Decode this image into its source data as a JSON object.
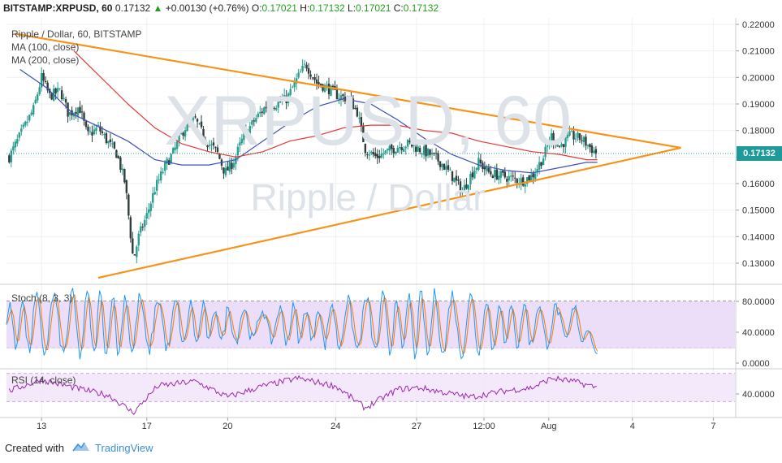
{
  "header": {
    "symbol": "BITSTAMP:XRPUSD, 60",
    "last": "0.17132",
    "change_arrow": "▲",
    "change": "+0.00130 (+0.76%)",
    "o_label": "O:",
    "o_val": "0.17021",
    "h_label": "H:",
    "h_val": "0.17132",
    "l_label": "L:",
    "l_val": "0.17021",
    "c_label": "C:",
    "c_val": "0.17132"
  },
  "legend": {
    "title": "Ripple / Dollar, 60, BITSTAMP",
    "ma100": "MA (100, close)",
    "ma200": "MA (200, close)"
  },
  "watermark": {
    "symbol": "XRPUSD, 60",
    "name": "Ripple / Dollar"
  },
  "price_tag": "0.17132",
  "stoch": {
    "label": "Stoch (8, 3, 3)"
  },
  "rsi": {
    "label": "RSI (14, close)"
  },
  "footer": {
    "created_with": "Created with",
    "brand": "TradingView"
  },
  "colors": {
    "candle_up": "#2a9d8f",
    "candle_down": "#2f3d3b",
    "ma100": "#3f51b5",
    "ma200": "#e53935",
    "trendline": "#f7931a",
    "stoch_k": "#2196f3",
    "stoch_d": "#f57c00",
    "rsi": "#9c27b0",
    "price_tag": "#1f9a9a"
  },
  "chart_data": [
    {
      "type": "candlestick",
      "title": "Ripple / Dollar, 60, BITSTAMP",
      "ylim": [
        0.12,
        0.22
      ],
      "y_ticks": [
        "0.22000",
        "0.21000",
        "0.20000",
        "0.19000",
        "0.18000",
        "0.17000",
        "0.16000",
        "0.15000",
        "0.14000",
        "0.13000"
      ],
      "x_ticks": [
        "13",
        "17",
        "20",
        "24",
        "27",
        "12:00",
        "Aug",
        "4",
        "7"
      ],
      "x_tick_pos": [
        1.3,
        5.2,
        8.2,
        12.2,
        15.2,
        17.7,
        20.1,
        23.2,
        26.2
      ],
      "xlim": [
        0,
        27
      ],
      "close_path": [
        [
          0.1,
          0.17
        ],
        [
          0.5,
          0.178
        ],
        [
          1.0,
          0.188
        ],
        [
          1.3,
          0.2
        ],
        [
          1.6,
          0.193
        ],
        [
          2.0,
          0.195
        ],
        [
          2.3,
          0.186
        ],
        [
          2.7,
          0.189
        ],
        [
          3.0,
          0.178
        ],
        [
          3.4,
          0.181
        ],
        [
          3.8,
          0.175
        ],
        [
          4.1,
          0.171
        ],
        [
          4.4,
          0.16
        ],
        [
          4.7,
          0.131
        ],
        [
          4.9,
          0.14
        ],
        [
          5.2,
          0.148
        ],
        [
          5.5,
          0.158
        ],
        [
          5.9,
          0.167
        ],
        [
          6.2,
          0.172
        ],
        [
          6.6,
          0.181
        ],
        [
          7.0,
          0.184
        ],
        [
          7.4,
          0.176
        ],
        [
          7.8,
          0.172
        ],
        [
          8.1,
          0.164
        ],
        [
          8.4,
          0.168
        ],
        [
          8.8,
          0.178
        ],
        [
          9.2,
          0.184
        ],
        [
          9.6,
          0.189
        ],
        [
          10.0,
          0.19
        ],
        [
          10.4,
          0.192
        ],
        [
          10.8,
          0.2
        ],
        [
          11.1,
          0.205
        ],
        [
          11.5,
          0.198
        ],
        [
          11.9,
          0.196
        ],
        [
          12.3,
          0.193
        ],
        [
          12.7,
          0.192
        ],
        [
          13.0,
          0.187
        ],
        [
          13.3,
          0.173
        ],
        [
          13.7,
          0.17
        ],
        [
          14.1,
          0.172
        ],
        [
          14.5,
          0.174
        ],
        [
          14.9,
          0.175
        ],
        [
          15.3,
          0.173
        ],
        [
          15.7,
          0.171
        ],
        [
          16.1,
          0.168
        ],
        [
          16.5,
          0.163
        ],
        [
          16.9,
          0.157
        ],
        [
          17.2,
          0.163
        ],
        [
          17.5,
          0.168
        ],
        [
          17.9,
          0.164
        ],
        [
          18.3,
          0.163
        ],
        [
          18.7,
          0.162
        ],
        [
          19.1,
          0.161
        ],
        [
          19.5,
          0.163
        ],
        [
          19.9,
          0.17
        ],
        [
          20.2,
          0.178
        ],
        [
          20.5,
          0.174
        ],
        [
          20.9,
          0.178
        ],
        [
          21.3,
          0.177
        ],
        [
          21.6,
          0.174
        ],
        [
          21.9,
          0.171
        ]
      ],
      "series": [
        {
          "name": "MA (100, close)",
          "points": [
            [
              0.5,
              0.203
            ],
            [
              1.5,
              0.196
            ],
            [
              2.5,
              0.186
            ],
            [
              3.5,
              0.181
            ],
            [
              4.5,
              0.176
            ],
            [
              5.5,
              0.169
            ],
            [
              6.5,
              0.167
            ],
            [
              7.5,
              0.167
            ],
            [
              8.5,
              0.169
            ],
            [
              9.5,
              0.176
            ],
            [
              10.5,
              0.183
            ],
            [
              11.5,
              0.189
            ],
            [
              12.5,
              0.192
            ],
            [
              13.5,
              0.19
            ],
            [
              14.5,
              0.184
            ],
            [
              15.5,
              0.177
            ],
            [
              16.5,
              0.171
            ],
            [
              17.5,
              0.167
            ],
            [
              18.5,
              0.165
            ],
            [
              19.5,
              0.164
            ],
            [
              20.5,
              0.166
            ],
            [
              21.5,
              0.168
            ],
            [
              21.9,
              0.168
            ]
          ]
        },
        {
          "name": "MA (200, close)",
          "points": [
            [
              2.5,
              0.21
            ],
            [
              3.5,
              0.2
            ],
            [
              4.5,
              0.19
            ],
            [
              5.5,
              0.181
            ],
            [
              6.5,
              0.175
            ],
            [
              7.5,
              0.172
            ],
            [
              8.5,
              0.17
            ],
            [
              9.5,
              0.172
            ],
            [
              10.5,
              0.176
            ],
            [
              11.5,
              0.178
            ],
            [
              12.5,
              0.181
            ],
            [
              13.5,
              0.182
            ],
            [
              14.5,
              0.182
            ],
            [
              15.5,
              0.18
            ],
            [
              16.5,
              0.179
            ],
            [
              17.5,
              0.176
            ],
            [
              18.5,
              0.174
            ],
            [
              19.5,
              0.172
            ],
            [
              20.5,
              0.171
            ],
            [
              21.5,
              0.169
            ],
            [
              21.9,
              0.169
            ]
          ]
        },
        {
          "name": "upper trendline",
          "points": [
            [
              0.3,
              0.2165
            ],
            [
              25.0,
              0.1735
            ]
          ]
        },
        {
          "name": "lower trendline",
          "points": [
            [
              3.4,
              0.1245
            ],
            [
              25.0,
              0.1735
            ]
          ]
        }
      ],
      "last_price": 0.17132
    },
    {
      "type": "line",
      "title": "Stoch (8, 3, 3)",
      "ylim": [
        0,
        100
      ],
      "y_ticks": [
        "80.0000",
        "40.0000",
        "0.0000"
      ],
      "bands": [
        20,
        80
      ],
      "cycles": 40,
      "k_end": 12
    },
    {
      "type": "line",
      "title": "RSI (14, close)",
      "ylim": [
        20,
        80
      ],
      "y_ticks": [
        "40.0000"
      ],
      "bands": [
        30,
        70
      ],
      "rsi_path": [
        [
          0.1,
          52
        ],
        [
          1.3,
          66
        ],
        [
          2.5,
          56
        ],
        [
          3.8,
          46
        ],
        [
          4.7,
          24
        ],
        [
          5.6,
          58
        ],
        [
          7.0,
          64
        ],
        [
          8.2,
          44
        ],
        [
          9.5,
          58
        ],
        [
          10.8,
          68
        ],
        [
          12.2,
          58
        ],
        [
          13.3,
          30
        ],
        [
          14.5,
          54
        ],
        [
          15.3,
          56
        ],
        [
          16.5,
          48
        ],
        [
          17.2,
          44
        ],
        [
          18.5,
          52
        ],
        [
          19.5,
          56
        ],
        [
          20.2,
          68
        ],
        [
          21.0,
          64
        ],
        [
          21.9,
          56
        ]
      ]
    }
  ]
}
